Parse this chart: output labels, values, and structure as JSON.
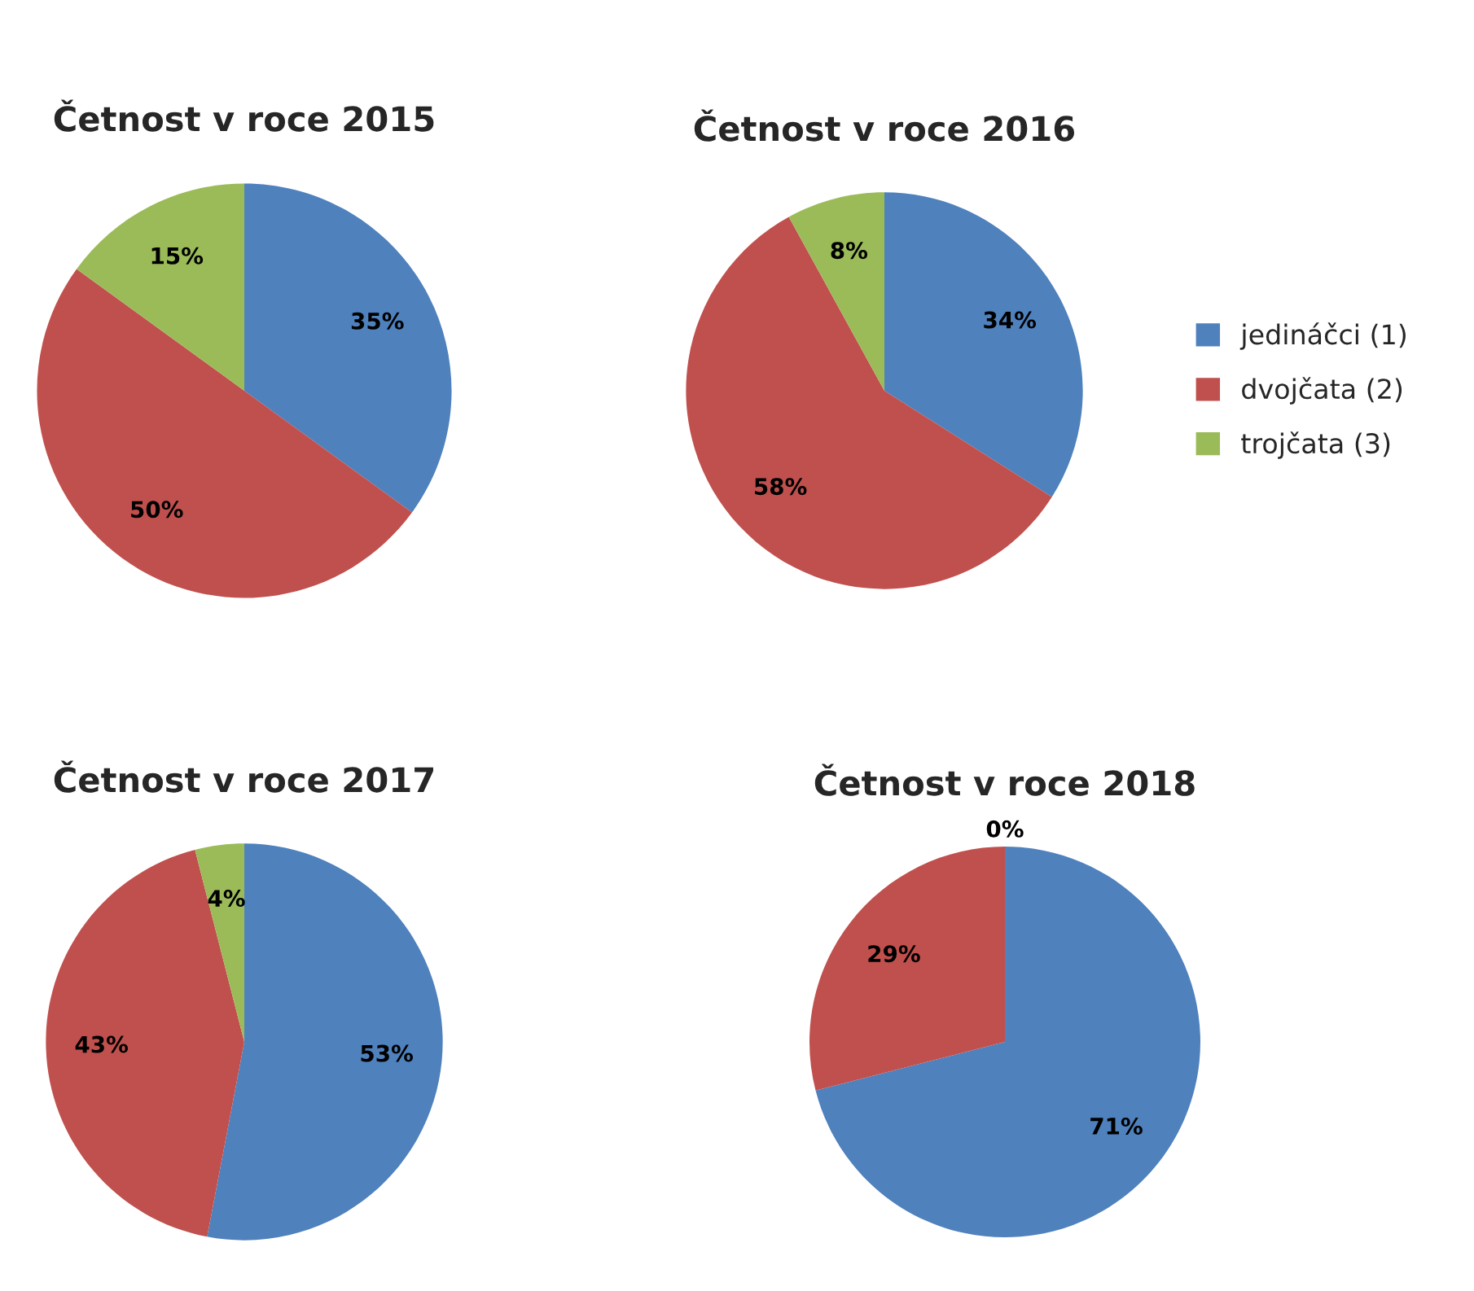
{
  "chart_data": [
    {
      "type": "pie",
      "title": "Četnost v roce 2015",
      "categories": [
        "jedináčci (1)",
        "dvojčata (2)",
        "trojčata (3)"
      ],
      "values": [
        35,
        50,
        15
      ],
      "value_labels": [
        "35%",
        "50%",
        "15%"
      ],
      "colors": [
        "#4f81bd",
        "#c0504d",
        "#9bbb59"
      ],
      "legend": "right"
    },
    {
      "type": "pie",
      "title": "Četnost v roce 2016",
      "categories": [
        null,
        null,
        null
      ],
      "values": [
        34,
        58,
        8
      ],
      "value_labels": [
        "34%",
        "58%",
        "8%"
      ],
      "colors": [
        "#4f81bd",
        "#c0504d",
        "#9bbb59"
      ],
      "legend": false
    },
    {
      "type": "pie",
      "title": "Četnost v roce 2017",
      "categories": [
        null,
        null,
        null
      ],
      "values": [
        53,
        43,
        4
      ],
      "value_labels": [
        "53%",
        "43%",
        "4%"
      ],
      "colors": [
        "#4f81bd",
        "#c0504d",
        "#9bbb59"
      ],
      "legend": false
    },
    {
      "type": "pie",
      "title": "Četnost v roce 2018",
      "categories": [
        null,
        null,
        null
      ],
      "values": [
        71,
        29,
        0
      ],
      "value_labels": [
        "71%",
        "29%",
        "0%"
      ],
      "colors": [
        "#4f81bd",
        "#c0504d",
        "#9bbb59"
      ],
      "legend": false
    }
  ]
}
